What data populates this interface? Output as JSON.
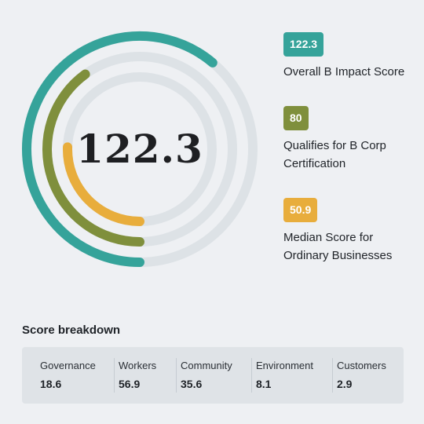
{
  "center_score": "122.3",
  "rings": [
    {
      "label": "Overall B Impact Score",
      "value": 122.3,
      "display": "122.3",
      "color": "#35a39a"
    },
    {
      "label": "Qualifies for B Corp Certification",
      "value": 80,
      "display": "80",
      "color": "#7f8f3c"
    },
    {
      "label": "Median Score for Ordinary Businesses",
      "value": 50.9,
      "display": "50.9",
      "color": "#e8ad3c"
    }
  ],
  "ring_track_color": "#dde2e6",
  "breakdown": {
    "title": "Score breakdown",
    "items": [
      {
        "label": "Governance",
        "value": "18.6"
      },
      {
        "label": "Workers",
        "value": "56.9"
      },
      {
        "label": "Community",
        "value": "35.6"
      },
      {
        "label": "Environment",
        "value": "8.1"
      },
      {
        "label": "Customers",
        "value": "2.9"
      }
    ]
  }
}
